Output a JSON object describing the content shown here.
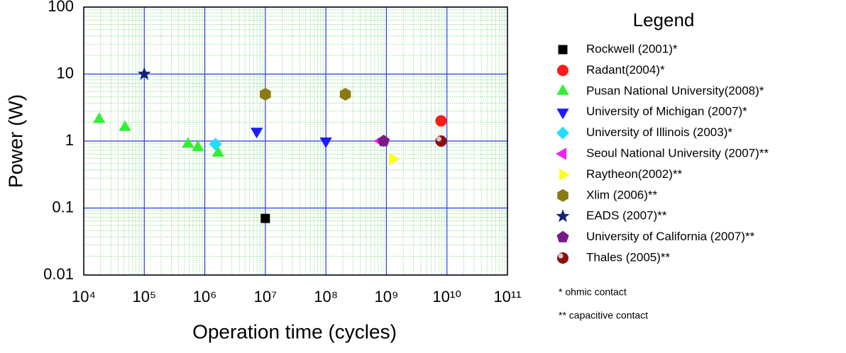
{
  "chart_data": {
    "type": "scatter",
    "x_label": "Operation time (cycles)",
    "y_label": "Power (W)",
    "x_log": true,
    "y_log": true,
    "grid": true,
    "minor_grid": true,
    "xlim": [
      10000,
      100000000000
    ],
    "ylim": [
      0.01,
      100
    ],
    "xticks": [
      {
        "value": 10000,
        "label": "10⁴"
      },
      {
        "value": 100000,
        "label": "10⁵"
      },
      {
        "value": 1000000,
        "label": "10⁶"
      },
      {
        "value": 10000000,
        "label": "10⁷"
      },
      {
        "value": 100000000,
        "label": "10⁸"
      },
      {
        "value": 1000000000,
        "label": "10⁹"
      },
      {
        "value": 10000000000,
        "label": "10¹⁰"
      },
      {
        "value": 100000000000,
        "label": "10¹¹"
      }
    ],
    "yticks": [
      0.01,
      0.1,
      1,
      10,
      100
    ],
    "legend_title": "Legend",
    "legend": "right",
    "series": [
      {
        "name": "Rockwell (2001)*",
        "color": "#000000",
        "marker": "square",
        "x": [
          10000000
        ],
        "y": [
          0.07
        ]
      },
      {
        "name": "Radant(2004)*",
        "color": "#ff1a1a",
        "marker": "circle",
        "x": [
          8000000000
        ],
        "y": [
          2
        ]
      },
      {
        "name": "Pusan National University(2008)*",
        "color": "#33ee33",
        "marker": "triangle-up",
        "x": [
          18000,
          48000,
          530000,
          770000,
          1660000
        ],
        "y": [
          2.1,
          1.6,
          0.9,
          0.8,
          0.66
        ]
      },
      {
        "name": "University of Michigan (2007)*",
        "color": "#1a1aff",
        "marker": "triangle-down",
        "x": [
          7200000,
          100000000
        ],
        "y": [
          1.4,
          1
        ]
      },
      {
        "name": "University of Illinois (2003)*",
        "color": "#22ddff",
        "marker": "diamond",
        "x": [
          1500000
        ],
        "y": [
          0.9
        ]
      },
      {
        "name": "Seoul National University (2007)**",
        "color": "#ee22ee",
        "marker": "triangle-left",
        "x": [
          800000000
        ],
        "y": [
          1
        ]
      },
      {
        "name": "Raytheon(2002)**",
        "color": "#ffff1a",
        "marker": "triangle-right",
        "x": [
          1260000000
        ],
        "y": [
          0.54
        ]
      },
      {
        "name": "Xlim (2006)**",
        "color": "#8a7a12",
        "marker": "hexagon",
        "x": [
          10000000,
          210000000
        ],
        "y": [
          5,
          5
        ]
      },
      {
        "name": "EADS (2007)**",
        "color": "#12237a",
        "marker": "star",
        "x": [
          100000
        ],
        "y": [
          10
        ]
      },
      {
        "name": "University of California (2007)**",
        "color": "#7a1a8a",
        "marker": "pentagon",
        "x": [
          900000000
        ],
        "y": [
          1
        ]
      },
      {
        "name": "Thales (2005)**",
        "color": "#8a1010",
        "marker": "sphere",
        "x": [
          8000000000
        ],
        "y": [
          1
        ]
      }
    ],
    "notes": [
      "*  ohmic contact",
      "** capacitive contact"
    ]
  }
}
